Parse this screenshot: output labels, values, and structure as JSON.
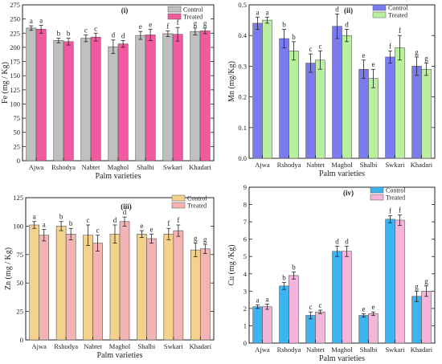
{
  "chart_data": [
    {
      "type": "bar",
      "panel_label": "(i)",
      "title": "",
      "xlabel": "Palm varieties",
      "ylabel": "Fe  (mg / Kg)",
      "categories": [
        "Ajwa",
        "Rshodya",
        "Nabtet",
        "Maghol",
        "Shalbi",
        "Swkari",
        "Khadari"
      ],
      "ylim": [
        0,
        275
      ],
      "yticks": [
        0,
        25,
        50,
        75,
        100,
        125,
        150,
        175,
        200,
        225,
        250,
        275
      ],
      "grid": false,
      "legend_position": "top-right",
      "series": [
        {
          "name": "Control",
          "color": "#c0c0c0",
          "values": [
            234,
            212,
            216,
            201,
            221,
            224,
            228
          ],
          "errors": [
            4,
            4,
            6,
            12,
            7,
            5,
            6
          ],
          "letters": [
            "a",
            "b",
            "c",
            "d",
            "e",
            "f",
            "g"
          ]
        },
        {
          "name": "Treated",
          "color": "#f25aa0",
          "values": [
            232,
            210,
            218,
            206,
            222,
            223,
            229
          ],
          "errors": [
            7,
            6,
            7,
            6,
            10,
            12,
            5
          ],
          "letters": [
            "a",
            "b",
            "c",
            "d",
            "e",
            "f",
            "g"
          ]
        }
      ]
    },
    {
      "type": "bar",
      "panel_label": "(ii)",
      "title": "",
      "xlabel": "Palm varieties",
      "ylabel": "Mn (mg/Kg)",
      "categories": [
        "Ajwa",
        "Rshodya",
        "Nabtet",
        "Maghol",
        "Shalbi",
        "Swkari",
        "Khadari"
      ],
      "ylim": [
        0,
        0.5
      ],
      "yticks": [
        0.0,
        0.1,
        0.2,
        0.3,
        0.4,
        0.5
      ],
      "ytick_labels": [
        "0.0",
        "0.1",
        "0.2",
        "0.3",
        "0.4",
        "0.5"
      ],
      "grid": false,
      "legend_position": "top-right",
      "series": [
        {
          "name": "Control",
          "color": "#7b7bf0",
          "values": [
            0.44,
            0.39,
            0.31,
            0.43,
            0.29,
            0.33,
            0.3
          ],
          "errors": [
            0.02,
            0.03,
            0.03,
            0.04,
            0.03,
            0.02,
            0.03
          ],
          "letters": [
            "a",
            "b",
            "c",
            "d",
            "e",
            "f",
            "g"
          ]
        },
        {
          "name": "Treated",
          "color": "#b8f0a0",
          "values": [
            0.45,
            0.35,
            0.32,
            0.4,
            0.26,
            0.36,
            0.29
          ],
          "errors": [
            0.01,
            0.03,
            0.03,
            0.02,
            0.03,
            0.04,
            0.02
          ],
          "letters": [
            "a",
            "b",
            "c",
            "d",
            "e",
            "f",
            "g"
          ]
        }
      ]
    },
    {
      "type": "bar",
      "panel_label": "(iii)",
      "title": "",
      "xlabel": "Palm varieties",
      "ylabel": "Zn (mg / Kg)",
      "categories": [
        "Ajwa",
        "Rshodya",
        "Nabtet",
        "Maghol",
        "Shalbi",
        "Swkari",
        "Khadari"
      ],
      "ylim": [
        0,
        125
      ],
      "yticks": [
        0,
        25,
        50,
        75,
        100,
        125
      ],
      "grid": false,
      "legend_position": "top-right",
      "series": [
        {
          "name": "Control",
          "color": "#f5d28c",
          "values": [
            101,
            100,
            92,
            93,
            93,
            93,
            79
          ],
          "errors": [
            3,
            4,
            9,
            8,
            3,
            5,
            6
          ],
          "letters": [
            "a",
            "b",
            "c",
            "d",
            "e",
            "f",
            "g"
          ]
        },
        {
          "name": "Treated",
          "color": "#f5b4b4",
          "values": [
            92,
            93,
            85,
            104,
            89,
            96,
            80
          ],
          "errors": [
            5,
            5,
            7,
            4,
            4,
            5,
            4
          ],
          "letters": [
            "a",
            "b",
            "c",
            "d",
            "e",
            "f",
            "g"
          ]
        }
      ]
    },
    {
      "type": "bar",
      "panel_label": "(iv)",
      "title": "",
      "xlabel": "Palm varieties",
      "ylabel": "Cu (mg /Kg)",
      "categories": [
        "Ajwa",
        "Rshodya",
        "Nabtet",
        "Maghol",
        "Shalbi",
        "Swkari",
        "Khadari"
      ],
      "ylim": [
        0,
        9
      ],
      "yticks": [
        0,
        1,
        2,
        3,
        4,
        5,
        6,
        7,
        8,
        9
      ],
      "grid": false,
      "legend_position": "top-right",
      "series": [
        {
          "name": "Control",
          "color": "#3cb4f0",
          "values": [
            2.1,
            3.3,
            1.6,
            5.3,
            1.6,
            7.15,
            2.7
          ],
          "errors": [
            0.1,
            0.2,
            0.2,
            0.3,
            0.1,
            0.2,
            0.3
          ],
          "letters": [
            "a",
            "b",
            "c",
            "d",
            "e",
            "f",
            "g"
          ]
        },
        {
          "name": "Treated",
          "color": "#f5b4dc",
          "values": [
            2.1,
            3.9,
            1.8,
            5.3,
            1.7,
            7.1,
            3.0
          ],
          "errors": [
            0.15,
            0.2,
            0.1,
            0.3,
            0.1,
            0.3,
            0.3
          ],
          "letters": [
            "a",
            "b",
            "c",
            "d",
            "e",
            "f",
            "g"
          ]
        }
      ]
    }
  ]
}
